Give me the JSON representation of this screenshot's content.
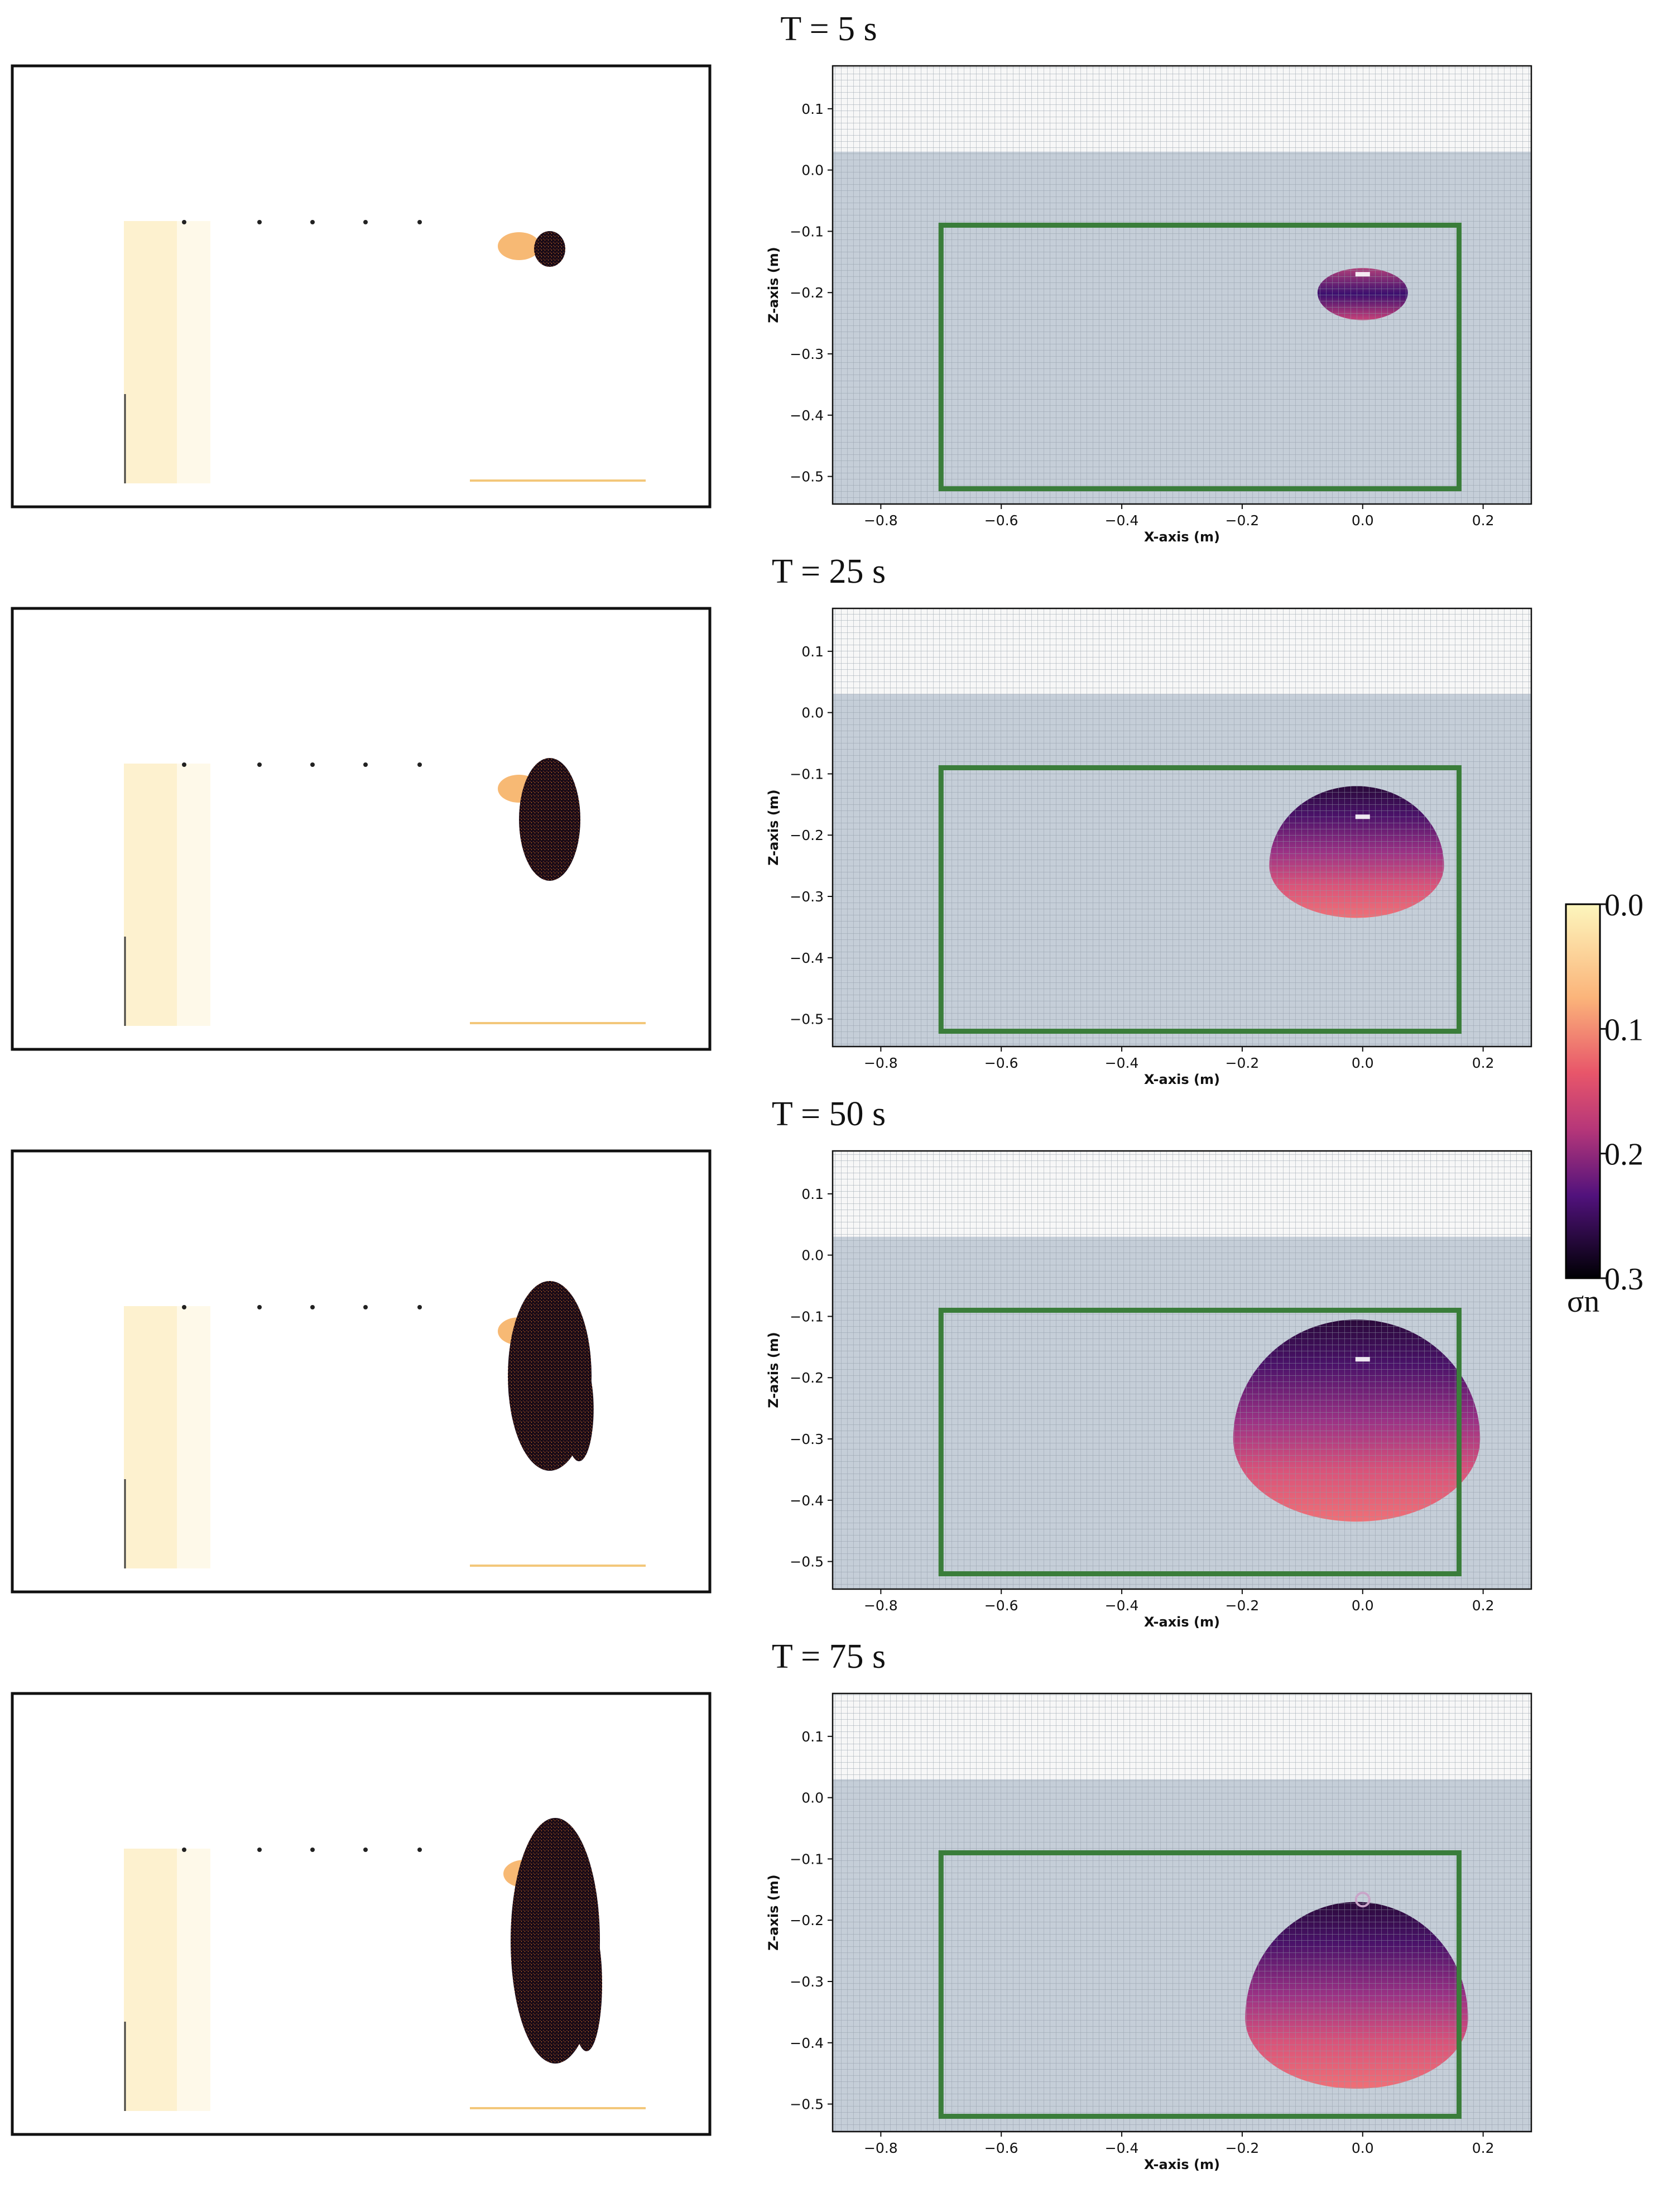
{
  "chart_data": {
    "type": "heatmap",
    "panels": [
      {
        "title": "T = 5 s",
        "zone": {
          "cx": 0.0,
          "cz": -0.2,
          "rx": 0.075,
          "rz_top": 0.04,
          "rz_bot": 0.045
        }
      },
      {
        "title": "T = 25 s",
        "zone": {
          "cx": -0.01,
          "cz": -0.25,
          "rx": 0.145,
          "rz_top": 0.13,
          "rz_bot": 0.085
        }
      },
      {
        "title": "T = 50 s",
        "zone": {
          "cx": -0.01,
          "cz": -0.3,
          "rx": 0.205,
          "rz_top": 0.195,
          "rz_bot": 0.135
        }
      },
      {
        "title": "T = 75 s",
        "zone": {
          "cx": -0.01,
          "cz": -0.36,
          "rx": 0.185,
          "rz_top": 0.19,
          "rz_bot": 0.115
        }
      }
    ],
    "xlabel": "X-axis (m)",
    "ylabel": "Z-axis (m)",
    "xlim": [
      -0.88,
      0.28
    ],
    "ylim": [
      -0.545,
      0.17
    ],
    "xticks": [
      -0.8,
      -0.6,
      -0.4,
      -0.2,
      0.0,
      0.2
    ],
    "xtick_labels": [
      "−0.8",
      "−0.6",
      "−0.4",
      "−0.2",
      "0.0",
      "0.2"
    ],
    "yticks": [
      0.1,
      0.0,
      -0.1,
      -0.2,
      -0.3,
      -0.4,
      -0.5
    ],
    "ytick_labels": [
      "0.1",
      "0.0",
      "−0.1",
      "−0.2",
      "−0.3",
      "−0.4",
      "−0.5"
    ],
    "domain_box": {
      "x": [
        -0.7,
        0.16
      ],
      "z": [
        -0.52,
        -0.09
      ]
    },
    "injection_point": {
      "x": 0.0,
      "z": -0.17
    },
    "water_surface_z": 0.03,
    "grid": true,
    "colorbar": {
      "label": "σn",
      "ticks": [
        0.0,
        0.1,
        0.2,
        0.3
      ],
      "tick_labels": [
        "0.0",
        "0.1",
        "0.2",
        "0.3"
      ],
      "range": [
        0.0,
        0.3
      ],
      "colors": [
        "#fcf6bd",
        "#f58c6d",
        "#b73779",
        "#51127c",
        "#000004"
      ]
    },
    "colors": {
      "box": "#3a7d3a",
      "grid": "#8f9aa6",
      "sat_bg": "#c5ced8",
      "unsat_bg": "#f7f7f7"
    }
  }
}
